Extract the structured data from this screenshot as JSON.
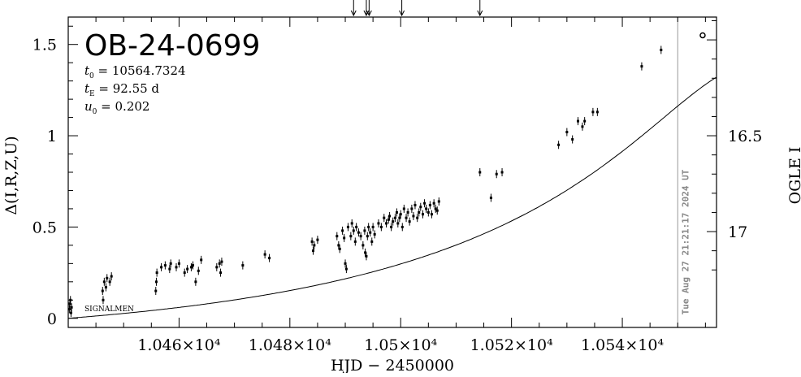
{
  "chart_data": {
    "type": "scatter",
    "title": "OB-24-0699",
    "params": [
      {
        "symbol": "t",
        "sub": "0",
        "text": " = 10564.7324"
      },
      {
        "symbol": "t",
        "sub": "E",
        "text": " = 92.55 d"
      },
      {
        "symbol": "u",
        "sub": "0",
        "text": " = 0.202"
      }
    ],
    "xlabel": "HJD − 2450000",
    "ylabel": "Δ(I,R,Z,U)",
    "y2label": "OGLE I",
    "observatory_label": "SIGNALMEN",
    "date_stamp": "Tue Aug 27 21:21:17 2024 UT",
    "date_line_x": 10550.0,
    "xlim": [
      10440,
      10557
    ],
    "ylim": [
      -0.05,
      1.65
    ],
    "x_ticks": [
      10460,
      10480,
      10500,
      10520,
      10540
    ],
    "x_tick_labels": [
      "1.046×10⁴",
      "1.048×10⁴",
      "1.05×10⁴",
      "1.052×10⁴",
      "1.054×10⁴"
    ],
    "y_ticks": [
      0,
      0.5,
      1,
      1.5
    ],
    "y_tick_labels": [
      "0",
      "0.5",
      "1",
      "1.5"
    ],
    "y2_ticks": [
      16.5,
      17
    ],
    "y2_tick_labels": [
      "16.5",
      "17"
    ],
    "y2_ref": {
      "mag": 16.5,
      "delta": 1.0,
      "delta_per_mag": 1.05
    },
    "arrows_x": [
      10491.5,
      10493.8,
      10494.3,
      10500.2,
      10514.3
    ],
    "model": {
      "t0": 10564.7324,
      "tE": 92.55,
      "u0": 0.202,
      "fs": 0.77
    },
    "open_point": {
      "x": 10554.5,
      "y": 1.55
    },
    "points": [
      [
        10440.2,
        0.05
      ],
      [
        10440.3,
        0.08
      ],
      [
        10440.4,
        0.1
      ],
      [
        10440.5,
        0.03
      ],
      [
        10440.6,
        0.06
      ],
      [
        10446.2,
        0.15
      ],
      [
        10446.3,
        0.1
      ],
      [
        10446.5,
        0.2
      ],
      [
        10446.8,
        0.17
      ],
      [
        10447.0,
        0.22
      ],
      [
        10447.5,
        0.2
      ],
      [
        10447.8,
        0.23
      ],
      [
        10455.8,
        0.15
      ],
      [
        10455.9,
        0.2
      ],
      [
        10456.0,
        0.25
      ],
      [
        10456.8,
        0.28
      ],
      [
        10457.5,
        0.29
      ],
      [
        10458.3,
        0.27
      ],
      [
        10458.5,
        0.3
      ],
      [
        10459.5,
        0.28
      ],
      [
        10460.0,
        0.3
      ],
      [
        10461.0,
        0.25
      ],
      [
        10461.5,
        0.27
      ],
      [
        10462.2,
        0.28
      ],
      [
        10462.5,
        0.29
      ],
      [
        10463.0,
        0.2
      ],
      [
        10463.5,
        0.26
      ],
      [
        10464.0,
        0.32
      ],
      [
        10466.8,
        0.28
      ],
      [
        10467.3,
        0.3
      ],
      [
        10467.5,
        0.25
      ],
      [
        10467.7,
        0.31
      ],
      [
        10471.5,
        0.29
      ],
      [
        10475.5,
        0.35
      ],
      [
        10476.3,
        0.33
      ],
      [
        10484.0,
        0.42
      ],
      [
        10484.2,
        0.37
      ],
      [
        10484.4,
        0.4
      ],
      [
        10485.0,
        0.43
      ],
      [
        10488.5,
        0.45
      ],
      [
        10488.8,
        0.4
      ],
      [
        10489.0,
        0.38
      ],
      [
        10489.5,
        0.48
      ],
      [
        10489.8,
        0.44
      ],
      [
        10490.0,
        0.3
      ],
      [
        10490.2,
        0.27
      ],
      [
        10490.5,
        0.5
      ],
      [
        10491.0,
        0.45
      ],
      [
        10491.2,
        0.52
      ],
      [
        10491.5,
        0.48
      ],
      [
        10491.8,
        0.42
      ],
      [
        10492.0,
        0.5
      ],
      [
        10492.4,
        0.47
      ],
      [
        10492.8,
        0.45
      ],
      [
        10493.2,
        0.4
      ],
      [
        10493.5,
        0.48
      ],
      [
        10493.6,
        0.36
      ],
      [
        10493.8,
        0.34
      ],
      [
        10494.0,
        0.45
      ],
      [
        10494.2,
        0.5
      ],
      [
        10494.5,
        0.47
      ],
      [
        10494.8,
        0.42
      ],
      [
        10495.0,
        0.5
      ],
      [
        10495.3,
        0.46
      ],
      [
        10496.0,
        0.52
      ],
      [
        10496.5,
        0.5
      ],
      [
        10497.0,
        0.55
      ],
      [
        10497.4,
        0.52
      ],
      [
        10497.8,
        0.54
      ],
      [
        10498.0,
        0.56
      ],
      [
        10498.3,
        0.5
      ],
      [
        10498.6,
        0.53
      ],
      [
        10499.0,
        0.55
      ],
      [
        10499.3,
        0.58
      ],
      [
        10499.5,
        0.52
      ],
      [
        10499.8,
        0.55
      ],
      [
        10500.0,
        0.57
      ],
      [
        10500.3,
        0.5
      ],
      [
        10500.6,
        0.6
      ],
      [
        10501.0,
        0.55
      ],
      [
        10501.3,
        0.58
      ],
      [
        10501.6,
        0.53
      ],
      [
        10502.0,
        0.6
      ],
      [
        10502.3,
        0.56
      ],
      [
        10502.6,
        0.62
      ],
      [
        10503.0,
        0.55
      ],
      [
        10503.3,
        0.58
      ],
      [
        10503.6,
        0.61
      ],
      [
        10504.0,
        0.57
      ],
      [
        10504.3,
        0.63
      ],
      [
        10504.6,
        0.6
      ],
      [
        10505.0,
        0.58
      ],
      [
        10505.3,
        0.62
      ],
      [
        10505.6,
        0.57
      ],
      [
        10506.0,
        0.63
      ],
      [
        10506.3,
        0.6
      ],
      [
        10506.6,
        0.59
      ],
      [
        10506.9,
        0.64
      ],
      [
        10514.3,
        0.8
      ],
      [
        10516.3,
        0.66
      ],
      [
        10517.3,
        0.79
      ],
      [
        10518.3,
        0.8
      ],
      [
        10528.5,
        0.95
      ],
      [
        10530.0,
        1.02
      ],
      [
        10531.0,
        0.98
      ],
      [
        10532.0,
        1.08
      ],
      [
        10532.8,
        1.05
      ],
      [
        10533.2,
        1.08
      ],
      [
        10534.7,
        1.13
      ],
      [
        10535.5,
        1.13
      ],
      [
        10543.5,
        1.38
      ],
      [
        10547.0,
        1.47
      ]
    ]
  }
}
